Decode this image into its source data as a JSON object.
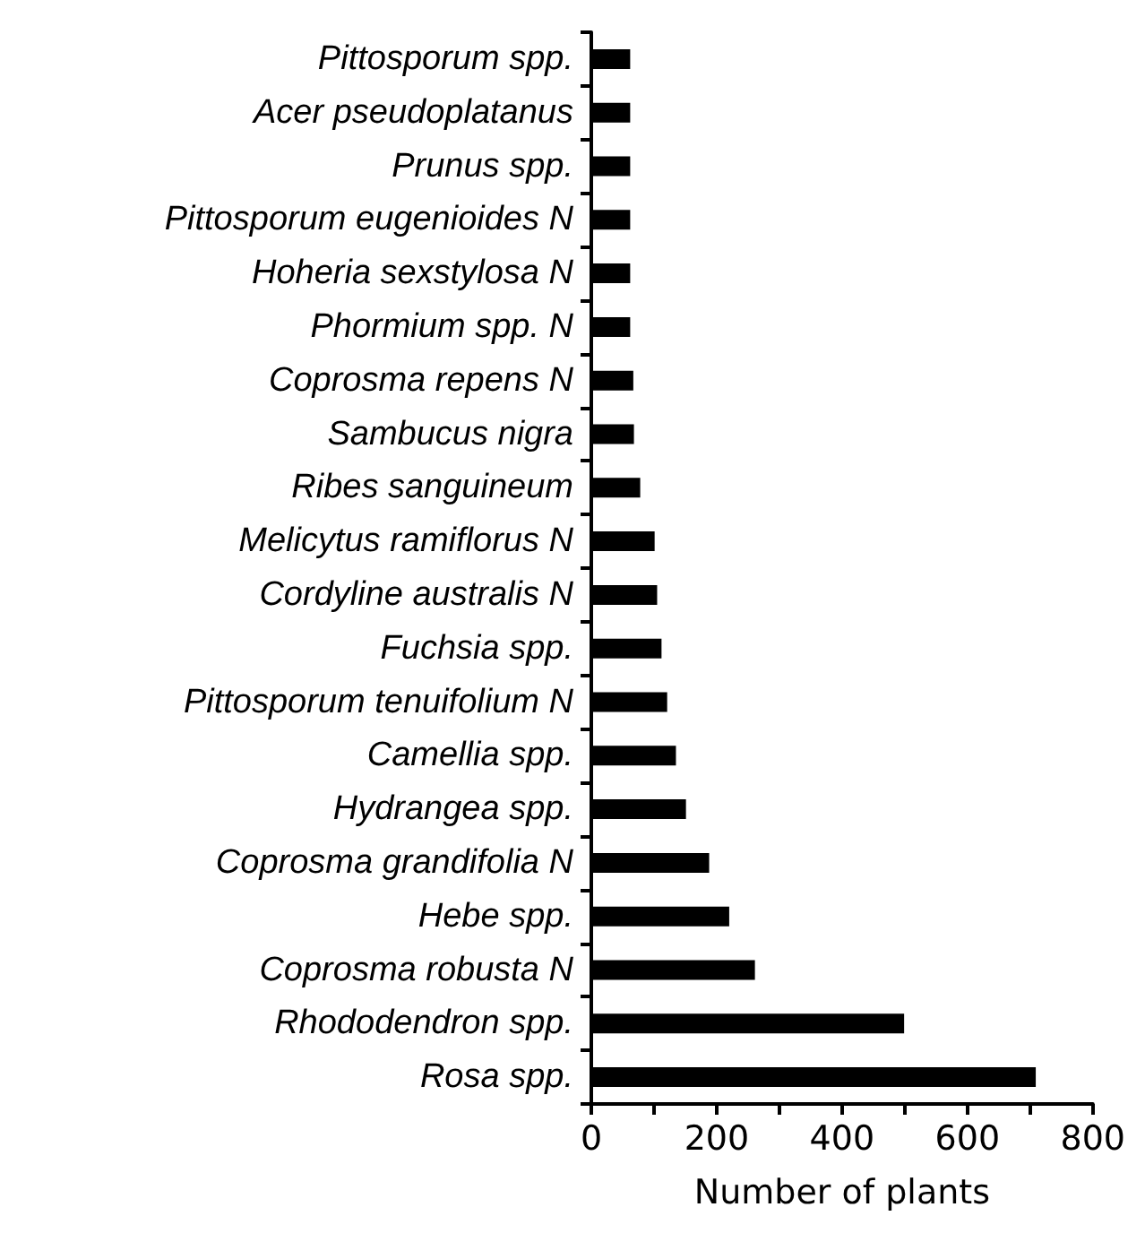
{
  "chart_data": {
    "type": "bar",
    "orientation": "horizontal",
    "xlabel": "Number of plants",
    "categories": [
      "Pittosporum spp.",
      "Acer pseudoplatanus",
      "Prunus spp.",
      "Pittosporum eugenioides N",
      "Hoheria sexstylosa N",
      "Phormium spp. N",
      "Coprosma repens N",
      "Sambucus nigra",
      "Ribes sanguineum",
      "Melicytus ramiflorus N",
      "Cordyline australis N",
      "Fuchsia spp.",
      "Pittosporum tenuifolium N",
      "Camellia spp.",
      "Hydrangea spp.",
      "Coprosma grandifolia N",
      "Hebe spp.",
      "Coprosma robusta N",
      "Rhododendron spp.",
      "Rosa spp."
    ],
    "values": [
      62,
      62,
      62,
      62,
      62,
      62,
      67,
      68,
      78,
      101,
      105,
      112,
      121,
      135,
      151,
      188,
      220,
      261,
      499,
      709
    ],
    "color": "#000000",
    "xlim": [
      0,
      800
    ],
    "xticks": [
      0,
      {
        "value": 100,
        "label": null
      },
      200,
      {
        "value": 300,
        "label": null
      },
      400,
      {
        "value": 500,
        "label": null
      },
      600,
      {
        "value": 700,
        "label": null
      },
      800
    ],
    "grid": false
  }
}
